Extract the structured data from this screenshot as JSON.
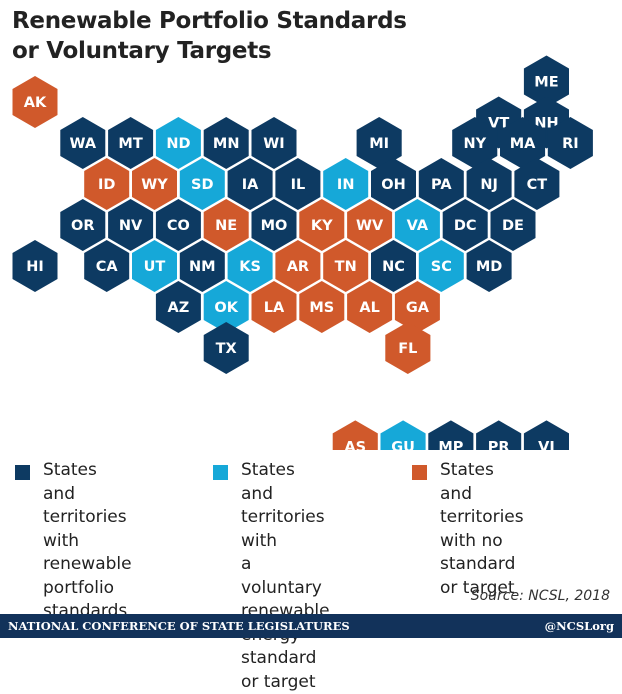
{
  "title_line1": "Renewable Portfolio Standards",
  "title_line2": "or Voluntary Targets",
  "colors": {
    "standard": "#0d3a62",
    "voluntary": "#16a8d8",
    "none": "#d0592b",
    "footer": "#12325a"
  },
  "states": [
    {
      "abbr": "AK",
      "status": "none"
    },
    {
      "abbr": "ME",
      "status": "standard"
    },
    {
      "abbr": "VT",
      "status": "standard"
    },
    {
      "abbr": "NH",
      "status": "standard"
    },
    {
      "abbr": "WA",
      "status": "standard"
    },
    {
      "abbr": "MT",
      "status": "standard"
    },
    {
      "abbr": "ND",
      "status": "voluntary"
    },
    {
      "abbr": "MN",
      "status": "standard"
    },
    {
      "abbr": "WI",
      "status": "standard"
    },
    {
      "abbr": "MI",
      "status": "standard"
    },
    {
      "abbr": "NY",
      "status": "standard"
    },
    {
      "abbr": "MA",
      "status": "standard"
    },
    {
      "abbr": "RI",
      "status": "standard"
    },
    {
      "abbr": "ID",
      "status": "none"
    },
    {
      "abbr": "WY",
      "status": "none"
    },
    {
      "abbr": "SD",
      "status": "voluntary"
    },
    {
      "abbr": "IA",
      "status": "standard"
    },
    {
      "abbr": "IL",
      "status": "standard"
    },
    {
      "abbr": "IN",
      "status": "voluntary"
    },
    {
      "abbr": "OH",
      "status": "standard"
    },
    {
      "abbr": "PA",
      "status": "standard"
    },
    {
      "abbr": "NJ",
      "status": "standard"
    },
    {
      "abbr": "CT",
      "status": "standard"
    },
    {
      "abbr": "OR",
      "status": "standard"
    },
    {
      "abbr": "NV",
      "status": "standard"
    },
    {
      "abbr": "CO",
      "status": "standard"
    },
    {
      "abbr": "NE",
      "status": "none"
    },
    {
      "abbr": "MO",
      "status": "standard"
    },
    {
      "abbr": "KY",
      "status": "none"
    },
    {
      "abbr": "WV",
      "status": "none"
    },
    {
      "abbr": "VA",
      "status": "voluntary"
    },
    {
      "abbr": "DC",
      "status": "standard"
    },
    {
      "abbr": "DE",
      "status": "standard"
    },
    {
      "abbr": "HI",
      "status": "standard"
    },
    {
      "abbr": "CA",
      "status": "standard"
    },
    {
      "abbr": "UT",
      "status": "voluntary"
    },
    {
      "abbr": "NM",
      "status": "standard"
    },
    {
      "abbr": "KS",
      "status": "voluntary"
    },
    {
      "abbr": "AR",
      "status": "none"
    },
    {
      "abbr": "TN",
      "status": "none"
    },
    {
      "abbr": "NC",
      "status": "standard"
    },
    {
      "abbr": "SC",
      "status": "voluntary"
    },
    {
      "abbr": "MD",
      "status": "standard"
    },
    {
      "abbr": "AZ",
      "status": "standard"
    },
    {
      "abbr": "OK",
      "status": "voluntary"
    },
    {
      "abbr": "LA",
      "status": "none"
    },
    {
      "abbr": "MS",
      "status": "none"
    },
    {
      "abbr": "AL",
      "status": "none"
    },
    {
      "abbr": "GA",
      "status": "none"
    },
    {
      "abbr": "TX",
      "status": "standard"
    },
    {
      "abbr": "FL",
      "status": "none"
    }
  ],
  "territories": [
    {
      "abbr": "AS",
      "status": "none"
    },
    {
      "abbr": "GU",
      "status": "voluntary"
    },
    {
      "abbr": "MP",
      "status": "standard"
    },
    {
      "abbr": "PR",
      "status": "standard"
    },
    {
      "abbr": "VI",
      "status": "standard"
    }
  ],
  "legend": [
    {
      "status": "standard",
      "lines": [
        "States and",
        "territories with",
        "renewable",
        "portfolio standards"
      ]
    },
    {
      "status": "voluntary",
      "lines": [
        "States and",
        "territories with",
        "a voluntary",
        "renewable energy",
        "standard or target"
      ]
    },
    {
      "status": "none",
      "lines": [
        "States and",
        "territories with no",
        "standard or target"
      ]
    }
  ],
  "source": "Source: NCSL, 2018",
  "footer_org": "NATIONAL CONFERENCE OF STATE LEGISLATURES",
  "footer_handle": "@NCSLorg"
}
